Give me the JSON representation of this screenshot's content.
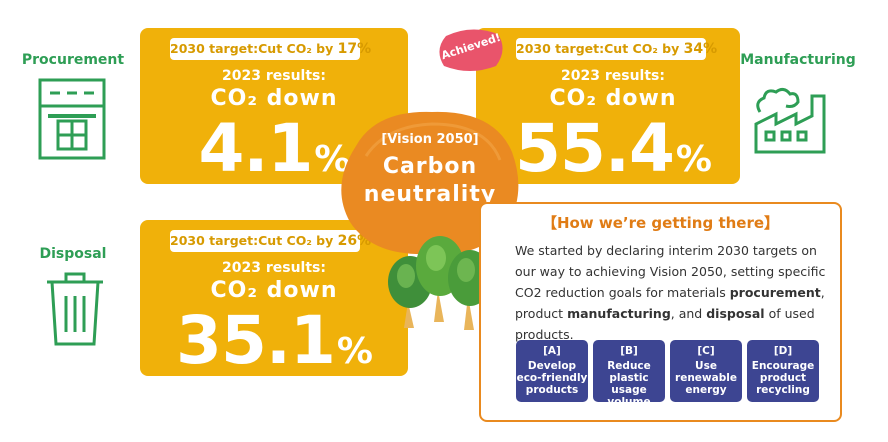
{
  "stages": {
    "procurement": "Procurement",
    "manufacturing": "Manufacturing",
    "disposal": "Disposal"
  },
  "cards": {
    "procurement": {
      "target_prefix": "2030 target:Cut CO₂ by ",
      "target_value": "17%",
      "results_label": "2023 results:",
      "down_label": "CO₂  down",
      "value": "4.1",
      "unit": "%"
    },
    "manufacturing": {
      "target_prefix": "2030 target:Cut CO₂ by ",
      "target_value": "34%",
      "results_label": "2023 results:",
      "down_label": "CO₂  down",
      "value": "55.4",
      "unit": "%"
    },
    "disposal": {
      "target_prefix": "2030 target:Cut CO₂ by ",
      "target_value": "26%",
      "results_label": "2023 results:",
      "down_label": "CO₂  down",
      "value": "35.1",
      "unit": "%"
    }
  },
  "achieved_badge": "Achieved!",
  "vision": {
    "label": "[Vision 2050]",
    "line1": "Carbon",
    "line2": "neutrality"
  },
  "how": {
    "title": "【How we’re getting there】",
    "body_1": "We started by declaring interim 2030 targets on our way to achieving Vision 2050, setting specific CO2 reduction goals for materials ",
    "bold_1": "procurement",
    "body_2": ", product ",
    "bold_2": "manufacturing",
    "body_3": ", and ",
    "bold_3": "disposal",
    "body_4": " of used products."
  },
  "actions": [
    {
      "code": "[A]",
      "line1": "Develop",
      "line2": "eco-friendly",
      "line3": "products"
    },
    {
      "code": "[B]",
      "line1": "Reduce",
      "line2": "plastic usage",
      "line3": "volume"
    },
    {
      "code": "[C]",
      "line1": "Use",
      "line2": "renewable",
      "line3": "energy"
    },
    {
      "code": "[D]",
      "line1": "Encourage",
      "line2": "product",
      "line3": "recycling"
    }
  ],
  "colors": {
    "card": "#f0b10a",
    "green": "#2e9e55",
    "orange_blob": "#ea8a22",
    "badge": "#e9546b",
    "navy": "#3d4592"
  }
}
